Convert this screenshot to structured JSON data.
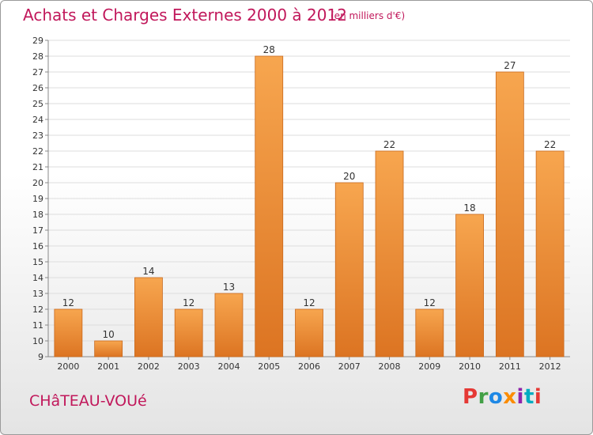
{
  "header": {
    "title": "Achats et Charges Externes 2000 à 2012",
    "subtitle": "(en milliers d'€)"
  },
  "footer": {
    "place": "CHâTEAU-VOUé",
    "brand": "Proxiti"
  },
  "colors": {
    "title": "#c1185b",
    "bar_top": "#f7a64f",
    "bar_bottom": "#dc7422",
    "bar_border": "#c8691e",
    "gridline": "#dddddd",
    "logo_letters": [
      "#e53935",
      "#43a047",
      "#1e88e5",
      "#fb8c00",
      "#8e24aa",
      "#00acc1",
      "#e53935"
    ]
  },
  "chart_data": {
    "type": "bar",
    "title": "Achats et Charges Externes 2000 à 2012",
    "subtitle": "(en milliers d'€)",
    "categories": [
      "2000",
      "2001",
      "2002",
      "2003",
      "2004",
      "2005",
      "2006",
      "2007",
      "2008",
      "2009",
      "2010",
      "2011",
      "2012"
    ],
    "values": [
      12,
      10,
      14,
      12,
      13,
      28,
      12,
      20,
      22,
      12,
      18,
      27,
      22
    ],
    "ylim": [
      9,
      29
    ],
    "yticks": [
      9,
      10,
      11,
      12,
      13,
      14,
      15,
      16,
      17,
      18,
      19,
      20,
      21,
      22,
      23,
      24,
      25,
      26,
      27,
      28,
      29
    ],
    "xlabel": "",
    "ylabel": "",
    "grid": true,
    "data_labels": true
  }
}
